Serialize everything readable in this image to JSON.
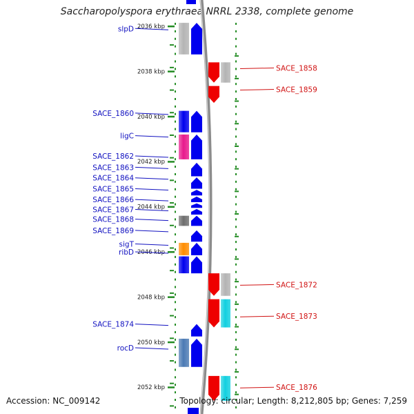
{
  "title": "Saccharopolyspora erythraea NRRL 2338, complete genome",
  "accession": "Accession: NC_009142",
  "topology": "Topology: circular; Length: 8,212,805 bp; Genes: 7,259",
  "colors": {
    "forward_label": "#1010c0",
    "reverse_label": "#d01010",
    "tick": "#228b22",
    "backbone": "#8c8c8c"
  },
  "kbp_ticks": [
    {
      "kbp": 2036,
      "label": "2036 kbp"
    },
    {
      "kbp": 2038,
      "label": "2038 kbp"
    },
    {
      "kbp": 2040,
      "label": "2040 kbp"
    },
    {
      "kbp": 2042,
      "label": "2042 kbp"
    },
    {
      "kbp": 2044,
      "label": "2044 kbp"
    },
    {
      "kbp": 2046,
      "label": "2046 kbp"
    },
    {
      "kbp": 2048,
      "label": "2048 kbp"
    },
    {
      "kbp": 2050,
      "label": "2050 kbp"
    },
    {
      "kbp": 2052,
      "label": "2052 kbp"
    }
  ],
  "genes": [
    {
      "name": "slpD",
      "strand": "forward",
      "start_kbp": 2035.85,
      "end_kbp": 2037.25,
      "color": "#0000ee",
      "tint": "#b4b4b4",
      "label_kbp": 2036.1
    },
    {
      "name": "SACE_1858",
      "strand": "reverse",
      "start_kbp": 2037.6,
      "end_kbp": 2038.5,
      "color": "#ee0000",
      "tint": "#b4b4b4",
      "label_kbp": 2037.85
    },
    {
      "name": "SACE_1859",
      "strand": "reverse",
      "start_kbp": 2038.65,
      "end_kbp": 2039.4,
      "color": "#ee0000",
      "tint": null,
      "label_kbp": 2038.8
    },
    {
      "name": "SACE_1860",
      "strand": "forward",
      "start_kbp": 2039.75,
      "end_kbp": 2040.7,
      "color": "#0000ee",
      "tint": "#0000ee",
      "label_kbp": 2039.85
    },
    {
      "name": "ligC",
      "strand": "forward",
      "start_kbp": 2040.8,
      "end_kbp": 2041.9,
      "color": "#0000ee",
      "tint": "#e8198c",
      "label_kbp": 2040.85
    },
    {
      "name": "SACE_1862",
      "strand": "forward",
      "start_kbp": 2042.05,
      "end_kbp": 2042.65,
      "color": "#0000ee",
      "tint": null,
      "label_kbp": 2041.75
    },
    {
      "name": "SACE_1863",
      "strand": "forward",
      "start_kbp": 2042.7,
      "end_kbp": 2043.2,
      "color": "#0000ee",
      "tint": null,
      "label_kbp": 2042.25
    },
    {
      "name": "SACE_1864",
      "strand": "forward",
      "start_kbp": 2043.25,
      "end_kbp": 2043.5,
      "color": "#0000ee",
      "tint": null,
      "label_kbp": 2042.72
    },
    {
      "name": "SACE_1865",
      "strand": "forward",
      "start_kbp": 2043.55,
      "end_kbp": 2043.8,
      "color": "#0000ee",
      "tint": null,
      "label_kbp": 2043.2
    },
    {
      "name": "SACE_1866",
      "strand": "forward",
      "start_kbp": 2043.85,
      "end_kbp": 2044.05,
      "color": "#0000ee",
      "tint": null,
      "label_kbp": 2043.68
    },
    {
      "name": "SACE_1867",
      "strand": "forward",
      "start_kbp": 2044.1,
      "end_kbp": 2044.35,
      "color": "#0000ee",
      "tint": null,
      "label_kbp": 2044.12
    },
    {
      "name": "SACE_1868",
      "strand": "forward",
      "start_kbp": 2044.4,
      "end_kbp": 2044.85,
      "color": "#0000ee",
      "tint": "#6e6e6e",
      "label_kbp": 2044.55
    },
    {
      "name": "SACE_1869",
      "strand": "forward",
      "start_kbp": 2045.05,
      "end_kbp": 2045.55,
      "color": "#0000ee",
      "tint": null,
      "label_kbp": 2045.05
    },
    {
      "name": "sigT",
      "strand": "forward",
      "start_kbp": 2045.6,
      "end_kbp": 2046.15,
      "color": "#0000ee",
      "tint": "#ff8c00",
      "label_kbp": 2045.65
    },
    {
      "name": "ribD",
      "strand": "forward",
      "start_kbp": 2046.2,
      "end_kbp": 2046.95,
      "color": "#0000ee",
      "tint": "#0000ee",
      "label_kbp": 2046.0
    },
    {
      "name": "SACE_1872",
      "strand": "reverse",
      "start_kbp": 2046.95,
      "end_kbp": 2047.95,
      "color": "#ee0000",
      "tint": "#b4b4b4",
      "label_kbp": 2047.45
    },
    {
      "name": "SACE_1873",
      "strand": "reverse",
      "start_kbp": 2048.1,
      "end_kbp": 2049.35,
      "color": "#ee0000",
      "tint": "#10d0e0",
      "label_kbp": 2048.85
    },
    {
      "name": "SACE_1874",
      "strand": "forward",
      "start_kbp": 2049.2,
      "end_kbp": 2049.75,
      "color": "#0000ee",
      "tint": null,
      "label_kbp": 2049.2
    },
    {
      "name": "rocD",
      "strand": "forward",
      "start_kbp": 2049.85,
      "end_kbp": 2051.1,
      "color": "#0000ee",
      "tint": "#4b7ab4",
      "label_kbp": 2050.25
    },
    {
      "name": "SACE_1876",
      "strand": "reverse",
      "start_kbp": 2051.5,
      "end_kbp": 2052.6,
      "color": "#ee0000",
      "tint": "#10d0e0",
      "label_kbp": 2052.0
    }
  ]
}
